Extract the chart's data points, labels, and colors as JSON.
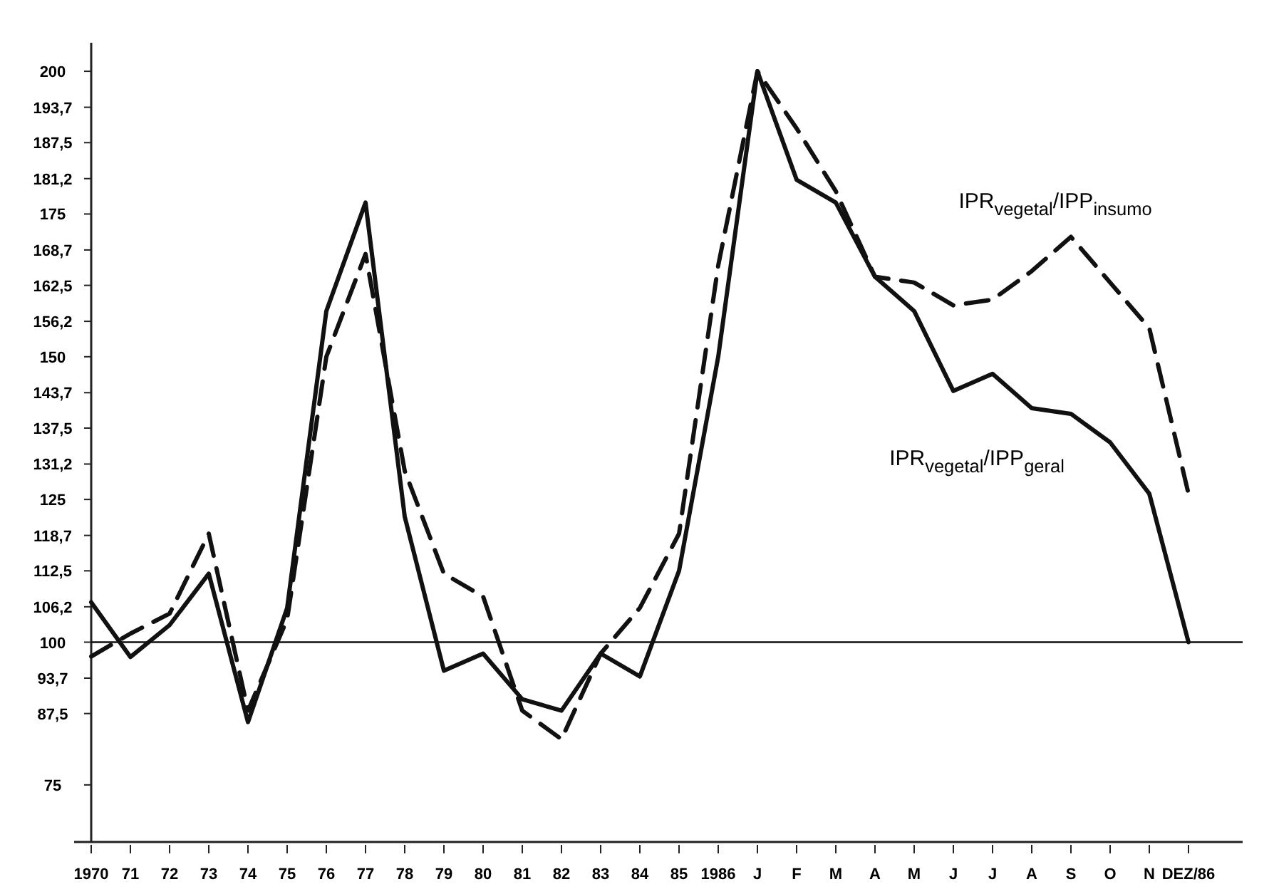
{
  "chart_data": {
    "type": "line",
    "categories": [
      "1970",
      "71",
      "72",
      "73",
      "74",
      "75",
      "76",
      "77",
      "78",
      "79",
      "80",
      "81",
      "82",
      "83",
      "84",
      "85",
      "1986",
      "J",
      "F",
      "M",
      "A",
      "M",
      "J",
      "J",
      "A",
      "S",
      "O",
      "N",
      "DEZ/86"
    ],
    "series": [
      {
        "name": "IPR$_{vegetal}$/IPP$_{geral}$",
        "color": "#111111",
        "line_style": "solid",
        "values": [
          107,
          97.4,
          103,
          112,
          86,
          106,
          158,
          177,
          122,
          95,
          98,
          90,
          88,
          98,
          94,
          112.5,
          150,
          200,
          181,
          177,
          164,
          158,
          144,
          147,
          141,
          140,
          135,
          126,
          100
        ]
      },
      {
        "name": "IPR$_{vegetal}$/IPP$_{insumo}$",
        "color": "#111111",
        "line_style": "dashed",
        "values": [
          97.5,
          101.5,
          105,
          119,
          88,
          104,
          150,
          168,
          130,
          112,
          108,
          88,
          83,
          98,
          106,
          119,
          166,
          200,
          190,
          179,
          164,
          163,
          159,
          160,
          165,
          171,
          163,
          155,
          126
        ]
      }
    ],
    "ylim": [
      65,
      205
    ],
    "yticks": [
      75,
      {
        "value": 87.5,
        "label": "87,5"
      },
      {
        "value": 93.7,
        "label": "93,7"
      },
      100,
      {
        "value": 106.2,
        "label": "106,2"
      },
      {
        "value": 112.5,
        "label": "112,5"
      },
      {
        "value": 118.7,
        "label": "118,7"
      },
      125,
      {
        "value": 131.2,
        "label": "131,2"
      },
      {
        "value": 137.5,
        "label": "137,5"
      },
      {
        "value": 143.7,
        "label": "143,7"
      },
      150,
      {
        "value": 156.2,
        "label": "156,2"
      },
      {
        "value": 162.5,
        "label": "162,5"
      },
      {
        "value": 168.7,
        "label": "168,7"
      },
      175,
      {
        "value": 181.2,
        "label": "181,2"
      },
      {
        "value": 187.5,
        "label": "187,5"
      },
      {
        "value": 193.7,
        "label": "193,7"
      },
      200
    ],
    "ref_lines": [
      {
        "axis": "y",
        "value": 100,
        "color": "#111111"
      }
    ],
    "grid": false,
    "marker": "none"
  }
}
